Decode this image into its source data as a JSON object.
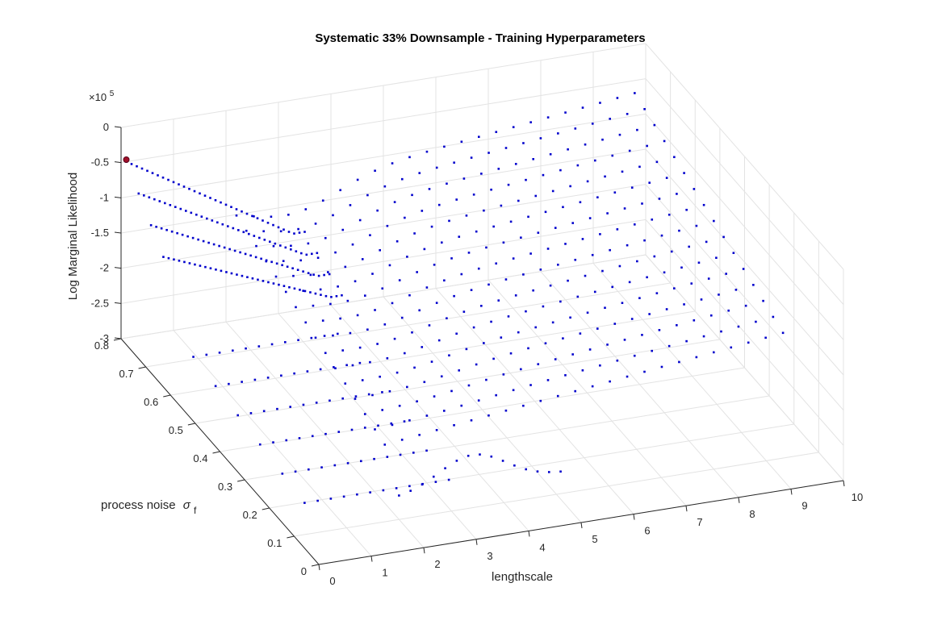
{
  "chart_data": {
    "type": "scatter",
    "title": "Systematic 33% Downsample - Training Hyperparameters",
    "xlabel": "lengthscale",
    "ylabel": "process noise",
    "ylabel_symbol": "σ",
    "ylabel_subscript": "f",
    "zlabel": "Log Marginal Likelihood",
    "z_exponent_label": "×10",
    "z_exponent_power": "5",
    "x_ticks": [
      "0",
      "1",
      "2",
      "3",
      "4",
      "5",
      "6",
      "7",
      "8",
      "9",
      "10"
    ],
    "y_ticks": [
      "0",
      "0.1",
      "0.2",
      "0.3",
      "0.4",
      "0.5",
      "0.6",
      "0.7",
      "0.8"
    ],
    "z_ticks": [
      "0",
      "-0.5",
      "-1",
      "-1.5",
      "-2",
      "-2.5",
      "-3"
    ],
    "xlim": [
      0,
      10
    ],
    "ylim": [
      0,
      0.8
    ],
    "zlim": [
      -3,
      0
    ],
    "grid": true,
    "colors": {
      "points": "#0000cc",
      "optimum": "#a0102a",
      "axis": "#262626",
      "grid": "#e3e3e3"
    },
    "optimum_point": {
      "x": 0.1,
      "y": 0.8,
      "z": -0.47
    },
    "series_note_points": "grid of evaluated hyperparameters (x: lengthscale, y: process noise, z in ×10^5)",
    "curves": [
      {
        "y": 0.8,
        "z0": -0.5,
        "z_mid": -1.9,
        "z_end": -0.3
      },
      {
        "y": 0.75,
        "z0": -0.75,
        "z_mid": -2.0,
        "z_end": -0.5
      },
      {
        "y": 0.7,
        "z0": -1.0,
        "z_mid": -2.1,
        "z_end": -0.7
      },
      {
        "y": 0.65,
        "z0": -1.25,
        "z_mid": -2.2,
        "z_end": -0.9
      }
    ]
  }
}
